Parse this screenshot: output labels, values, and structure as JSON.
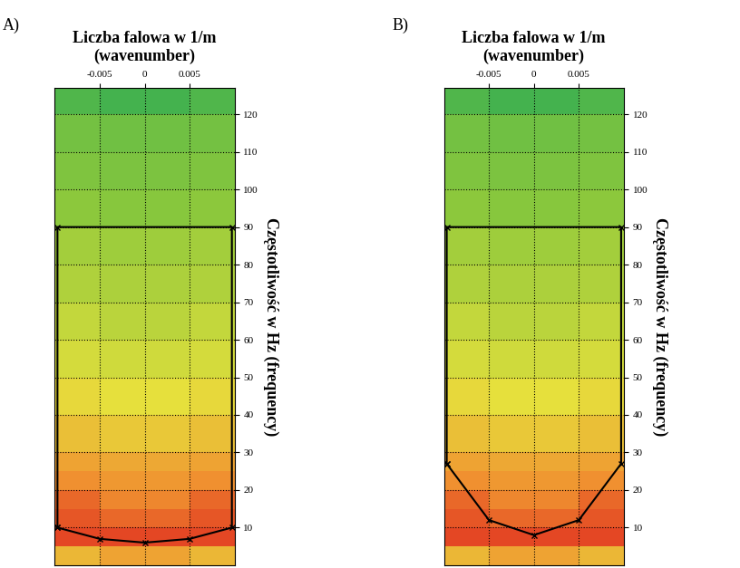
{
  "chart_data": [
    {
      "type": "heatmap",
      "panel": "A)",
      "title": "Liczba falowa w 1/m\n(wavenumber)",
      "ylabel": "Częstotliwość w Hz (frequency)",
      "xlim": [
        -0.01,
        0.01
      ],
      "xticks": [
        -0.005,
        0,
        0.005
      ],
      "ylim": [
        0,
        127
      ],
      "yticks": [
        10,
        20,
        30,
        40,
        50,
        60,
        70,
        80,
        90,
        100,
        110,
        120
      ],
      "grid": true,
      "cells_x": [
        -0.01,
        -0.005,
        0,
        0.005,
        0.01
      ],
      "cells_y": [
        0,
        5,
        10,
        15,
        20,
        25,
        30,
        40,
        50,
        60,
        70,
        80,
        90,
        100,
        110,
        120,
        127
      ],
      "cells": [
        [
          0.7,
          0.75,
          0.75,
          0.7
        ],
        [
          0.95,
          0.95,
          0.95,
          0.95
        ],
        [
          0.92,
          0.88,
          0.88,
          0.92
        ],
        [
          0.88,
          0.82,
          0.82,
          0.88
        ],
        [
          0.8,
          0.78,
          0.78,
          0.8
        ],
        [
          0.75,
          0.74,
          0.74,
          0.75
        ],
        [
          0.68,
          0.66,
          0.66,
          0.68
        ],
        [
          0.62,
          0.6,
          0.6,
          0.62
        ],
        [
          0.56,
          0.55,
          0.55,
          0.56
        ],
        [
          0.52,
          0.5,
          0.5,
          0.52
        ],
        [
          0.48,
          0.47,
          0.47,
          0.48
        ],
        [
          0.45,
          0.44,
          0.44,
          0.45
        ],
        [
          0.4,
          0.39,
          0.39,
          0.4
        ],
        [
          0.37,
          0.36,
          0.36,
          0.37
        ],
        [
          0.34,
          0.33,
          0.33,
          0.34
        ],
        [
          0.25,
          0.22,
          0.22,
          0.25
        ]
      ],
      "color_range": [
        0,
        1
      ],
      "polygon": {
        "x": [
          -0.0097,
          -0.005,
          0,
          0.005,
          0.0097,
          0.0097,
          -0.0097,
          -0.0097
        ],
        "y": [
          10,
          7,
          6,
          7,
          10,
          90,
          90,
          10
        ]
      },
      "color": "#000000",
      "marker": "x"
    },
    {
      "type": "heatmap",
      "panel": "B)",
      "title": "Liczba falowa w 1/m\n(wavenumber)",
      "ylabel": "Częstotliwość w Hz (frequency)",
      "xlim": [
        -0.01,
        0.01
      ],
      "xticks": [
        -0.005,
        0,
        0.005
      ],
      "ylim": [
        0,
        127
      ],
      "yticks": [
        10,
        20,
        30,
        40,
        50,
        60,
        70,
        80,
        90,
        100,
        110,
        120
      ],
      "grid": true,
      "cells_x": [
        -0.01,
        -0.005,
        0,
        0.005,
        0.01
      ],
      "cells_y": [
        0,
        5,
        10,
        15,
        20,
        25,
        30,
        40,
        50,
        60,
        70,
        80,
        90,
        100,
        110,
        120,
        127
      ],
      "cells": [
        [
          0.7,
          0.75,
          0.75,
          0.7
        ],
        [
          0.95,
          0.95,
          0.95,
          0.95
        ],
        [
          0.92,
          0.88,
          0.88,
          0.92
        ],
        [
          0.88,
          0.82,
          0.82,
          0.88
        ],
        [
          0.8,
          0.78,
          0.78,
          0.8
        ],
        [
          0.75,
          0.74,
          0.74,
          0.75
        ],
        [
          0.68,
          0.66,
          0.66,
          0.68
        ],
        [
          0.62,
          0.6,
          0.6,
          0.62
        ],
        [
          0.56,
          0.55,
          0.55,
          0.56
        ],
        [
          0.52,
          0.5,
          0.5,
          0.52
        ],
        [
          0.48,
          0.47,
          0.47,
          0.48
        ],
        [
          0.45,
          0.44,
          0.44,
          0.45
        ],
        [
          0.4,
          0.39,
          0.39,
          0.4
        ],
        [
          0.37,
          0.36,
          0.36,
          0.37
        ],
        [
          0.34,
          0.33,
          0.33,
          0.34
        ],
        [
          0.25,
          0.22,
          0.22,
          0.25
        ]
      ],
      "color_range": [
        0,
        1
      ],
      "polygon": {
        "x": [
          -0.0097,
          -0.005,
          0,
          0.005,
          0.0097,
          0.0097,
          -0.0097,
          -0.0097
        ],
        "y": [
          27,
          12,
          8,
          12,
          27,
          90,
          90,
          27
        ]
      },
      "color": "#000000",
      "marker": "x"
    }
  ]
}
